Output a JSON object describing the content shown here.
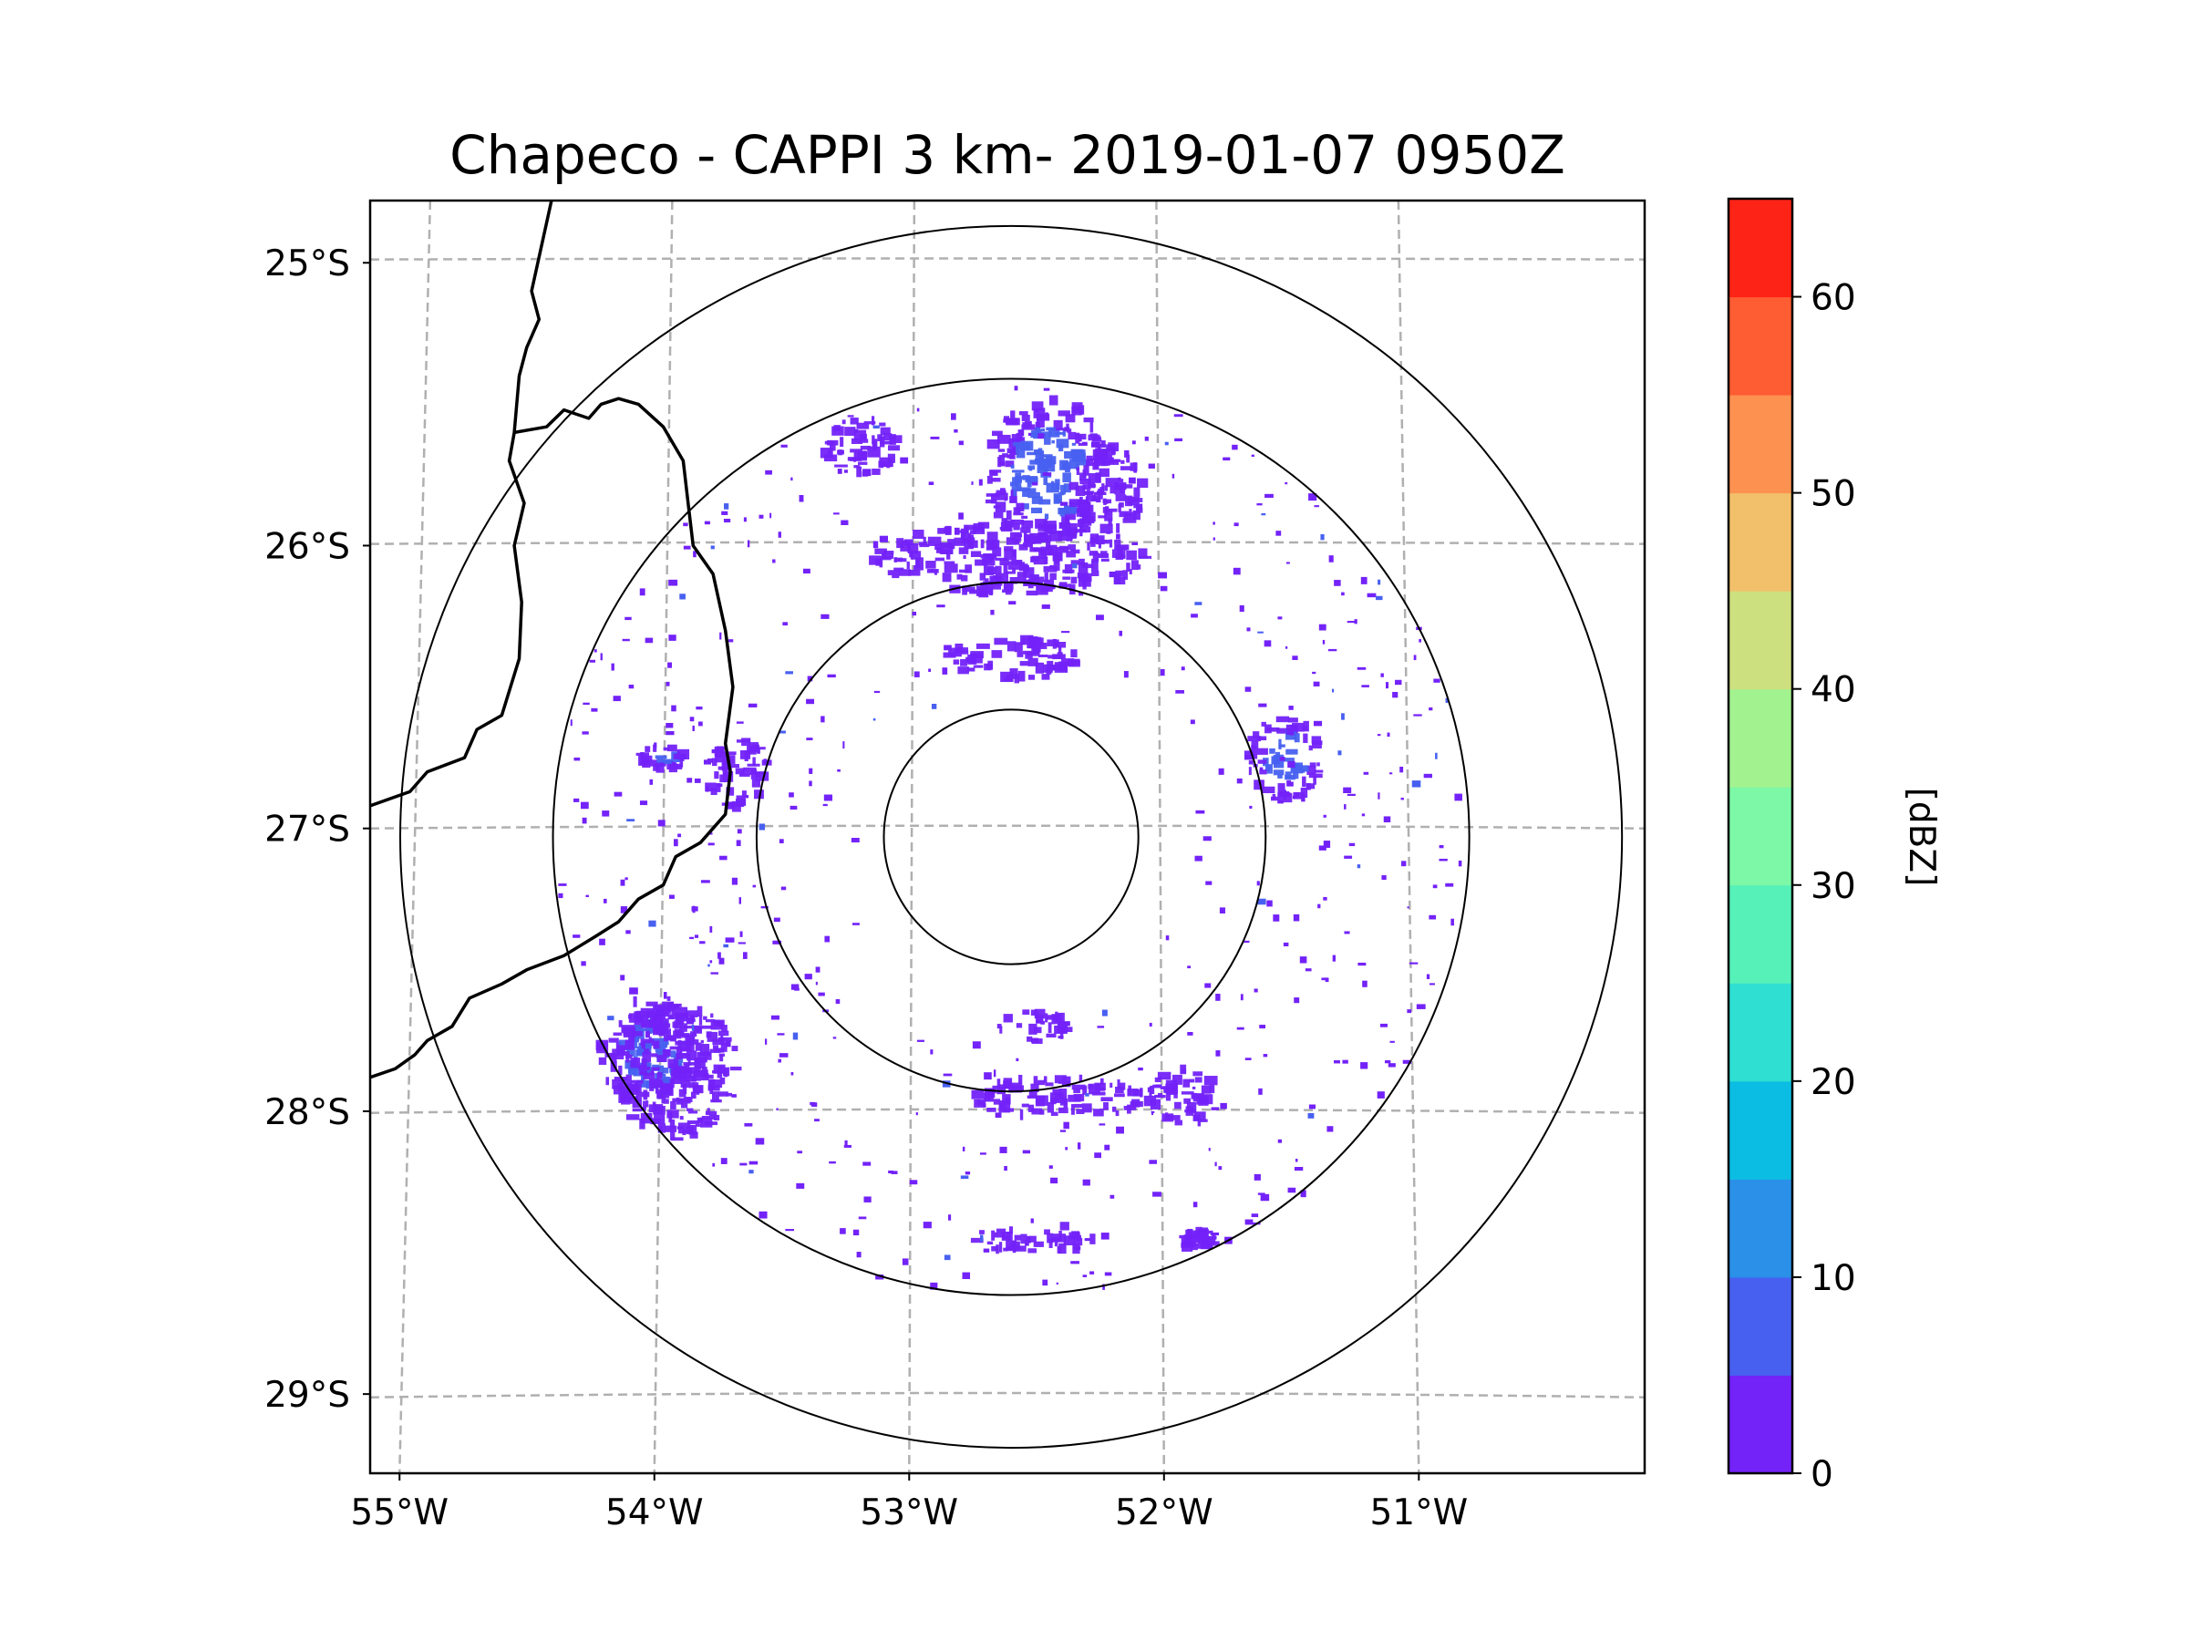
{
  "chart_data": {
    "type": "heatmap",
    "title": "Chapeco - CAPPI 3 km- 2019-01-07 0950Z",
    "x_axis": {
      "label": "",
      "ticks": [
        {
          "value": -55,
          "label": "55°W"
        },
        {
          "value": -54,
          "label": "54°W"
        },
        {
          "value": -53,
          "label": "53°W"
        },
        {
          "value": -52,
          "label": "52°W"
        },
        {
          "value": -51,
          "label": "51°W"
        }
      ],
      "range": [
        -55.18,
        -50.05
      ]
    },
    "y_axis": {
      "label": "",
      "ticks": [
        {
          "value": -25,
          "label": "25°S"
        },
        {
          "value": -26,
          "label": "26°S"
        },
        {
          "value": -27,
          "label": "27°S"
        },
        {
          "value": -28,
          "label": "28°S"
        },
        {
          "value": -29,
          "label": "29°S"
        }
      ],
      "range": [
        -29.28,
        -24.78
      ]
    },
    "grid": true,
    "radar_center": {
      "lon": -52.6,
      "lat": -27.03
    },
    "range_rings_deg_lat": [
      0.45,
      0.9,
      1.62,
      2.16
    ],
    "colorbar": {
      "label": "[dBZ]",
      "min": 0,
      "max": 65,
      "ticks": [
        0,
        10,
        20,
        30,
        40,
        50,
        60
      ],
      "levels": [
        {
          "from": 0,
          "to": 5,
          "color": "#7322f8"
        },
        {
          "from": 5,
          "to": 10,
          "color": "#4860f0"
        },
        {
          "from": 10,
          "to": 15,
          "color": "#2a90e8"
        },
        {
          "from": 15,
          "to": 20,
          "color": "#0cbde3"
        },
        {
          "from": 20,
          "to": 25,
          "color": "#2edfd2"
        },
        {
          "from": 25,
          "to": 30,
          "color": "#56f1b9"
        },
        {
          "from": 30,
          "to": 35,
          "color": "#7cf8a6"
        },
        {
          "from": 35,
          "to": 40,
          "color": "#a2f28f"
        },
        {
          "from": 40,
          "to": 45,
          "color": "#cde07f"
        },
        {
          "from": 45,
          "to": 50,
          "color": "#f2c06a"
        },
        {
          "from": 50,
          "to": 55,
          "color": "#fd9150"
        },
        {
          "from": 55,
          "to": 60,
          "color": "#fe5c33"
        },
        {
          "from": 60,
          "to": 65,
          "color": "#fe2317"
        }
      ]
    },
    "echo_regions": [
      {
        "name": "north-band",
        "lon": -52.6,
        "lat": -26.05,
        "lon_span": 1.1,
        "lat_span": 0.25,
        "dbz": 3
      },
      {
        "name": "north-core",
        "lon": -52.45,
        "lat": -25.75,
        "lon_span": 0.5,
        "lat_span": 0.55,
        "dbz": 7
      },
      {
        "name": "north-northeast",
        "lon": -52.2,
        "lat": -25.8,
        "lon_span": 0.3,
        "lat_span": 0.3,
        "dbz": 3
      },
      {
        "name": "north-left",
        "lon": -53.2,
        "lat": -25.65,
        "lon_span": 0.3,
        "lat_span": 0.2,
        "dbz": 3
      },
      {
        "name": "north-inner",
        "lon": -52.6,
        "lat": -26.4,
        "lon_span": 0.55,
        "lat_span": 0.15,
        "dbz": 2
      },
      {
        "name": "west-cell",
        "lon": -53.7,
        "lat": -26.8,
        "lon_span": 0.25,
        "lat_span": 0.25,
        "dbz": 4
      },
      {
        "name": "west-small",
        "lon": -54.0,
        "lat": -26.75,
        "lon_span": 0.2,
        "lat_span": 0.08,
        "dbz": 7
      },
      {
        "name": "east-cell",
        "lon": -51.5,
        "lat": -26.75,
        "lon_span": 0.3,
        "lat_span": 0.3,
        "dbz": 8
      },
      {
        "name": "southwest-core",
        "lon": -54.05,
        "lat": -27.8,
        "lon_span": 0.4,
        "lat_span": 0.4,
        "dbz": 8
      },
      {
        "name": "southwest-cluster",
        "lon": -53.95,
        "lat": -27.85,
        "lon_span": 0.5,
        "lat_span": 0.5,
        "dbz": 3
      },
      {
        "name": "south-band",
        "lon": -52.4,
        "lat": -27.95,
        "lon_span": 0.7,
        "lat_span": 0.15,
        "dbz": 3
      },
      {
        "name": "south-inner",
        "lon": -52.5,
        "lat": -27.7,
        "lon_span": 0.3,
        "lat_span": 0.12,
        "dbz": 2
      },
      {
        "name": "southeast-cell",
        "lon": -51.9,
        "lat": -27.95,
        "lon_span": 0.3,
        "lat_span": 0.2,
        "dbz": 3
      },
      {
        "name": "far-south-cell",
        "lon": -51.85,
        "lat": -28.45,
        "lon_span": 0.15,
        "lat_span": 0.07,
        "dbz": 3
      },
      {
        "name": "far-south-band",
        "lon": -52.5,
        "lat": -28.45,
        "lon_span": 0.5,
        "lat_span": 0.1,
        "dbz": 2
      }
    ],
    "borders": [
      [
        [
          -54.45,
          -24.78
        ],
        [
          -54.53,
          -25.1
        ],
        [
          -54.5,
          -25.2
        ],
        [
          -54.55,
          -25.3
        ],
        [
          -54.58,
          -25.4
        ],
        [
          -54.6,
          -25.6
        ],
        [
          -54.62,
          -25.7
        ],
        [
          -54.56,
          -25.85
        ],
        [
          -54.6,
          -26.0
        ],
        [
          -54.57,
          -26.2
        ],
        [
          -54.58,
          -26.4
        ],
        [
          -54.65,
          -26.6
        ],
        [
          -54.75,
          -26.65
        ],
        [
          -54.8,
          -26.75
        ],
        [
          -54.95,
          -26.8
        ],
        [
          -55.02,
          -26.87
        ],
        [
          -55.18,
          -26.92
        ]
      ],
      [
        [
          -54.6,
          -25.6
        ],
        [
          -54.47,
          -25.58
        ],
        [
          -54.4,
          -25.52
        ],
        [
          -54.3,
          -25.55
        ],
        [
          -54.25,
          -25.5
        ],
        [
          -54.18,
          -25.48
        ],
        [
          -54.1,
          -25.5
        ],
        [
          -54.0,
          -25.58
        ],
        [
          -53.92,
          -25.7
        ],
        [
          -53.9,
          -25.85
        ],
        [
          -53.88,
          -26.0
        ],
        [
          -53.8,
          -26.1
        ],
        [
          -53.75,
          -26.3
        ],
        [
          -53.72,
          -26.5
        ],
        [
          -53.75,
          -26.7
        ],
        [
          -53.73,
          -26.8
        ],
        [
          -53.75,
          -26.95
        ],
        [
          -53.85,
          -27.05
        ],
        [
          -53.95,
          -27.1
        ],
        [
          -54.0,
          -27.2
        ],
        [
          -54.1,
          -27.25
        ],
        [
          -54.18,
          -27.33
        ],
        [
          -54.27,
          -27.38
        ],
        [
          -54.4,
          -27.45
        ],
        [
          -54.55,
          -27.5
        ],
        [
          -54.65,
          -27.55
        ],
        [
          -54.78,
          -27.6
        ],
        [
          -54.85,
          -27.7
        ],
        [
          -54.95,
          -27.75
        ],
        [
          -55.0,
          -27.8
        ],
        [
          -55.08,
          -27.85
        ],
        [
          -55.18,
          -27.88
        ]
      ]
    ]
  }
}
